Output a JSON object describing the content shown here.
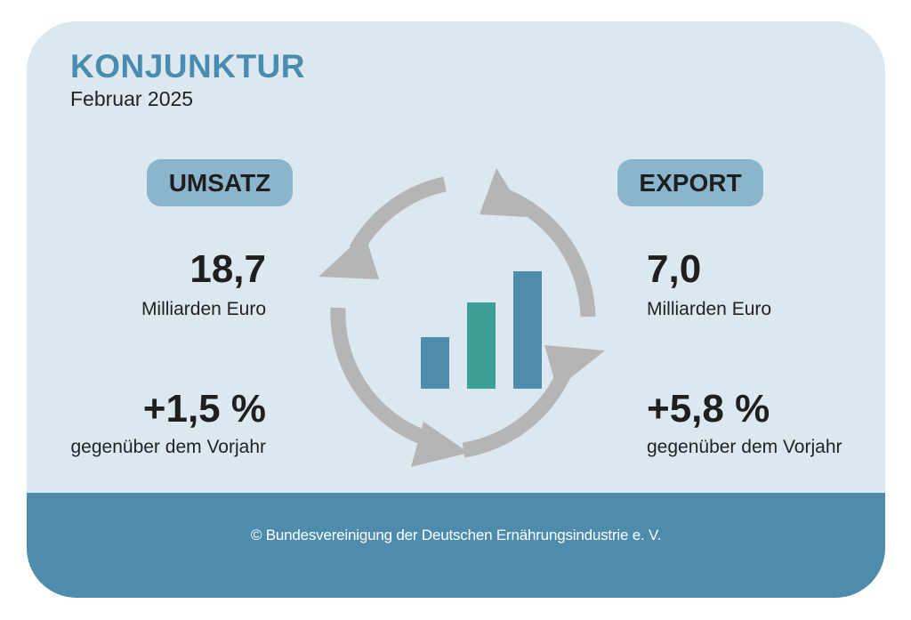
{
  "header": {
    "title": "KONJUNKTUR",
    "subtitle": "Februar 2025"
  },
  "umsatz": {
    "label": "UMSATZ",
    "value": "18,7",
    "unit": "Milliarden Euro",
    "change": "+1,5 %",
    "comparison": "gegenüber dem Vorjahr"
  },
  "export": {
    "label": "EXPORT",
    "value": "7,0",
    "unit": "Milliarden Euro",
    "change": "+5,8 %",
    "comparison": "gegenüber dem Vorjahr"
  },
  "footer": {
    "credit": "© Bundesvereinigung der Deutschen Ernährungsindustrie e. V."
  },
  "icon": {
    "name": "growth-cycle-icon",
    "arrow_color": "#b5b5b5",
    "bar_colors": [
      "#4d8cad",
      "#3e9e98",
      "#4d8cad"
    ]
  },
  "colors": {
    "background": "#dce8ef",
    "accent": "#4a8cb0",
    "pill": "#8bb5cc",
    "footer": "#4d8cad"
  }
}
